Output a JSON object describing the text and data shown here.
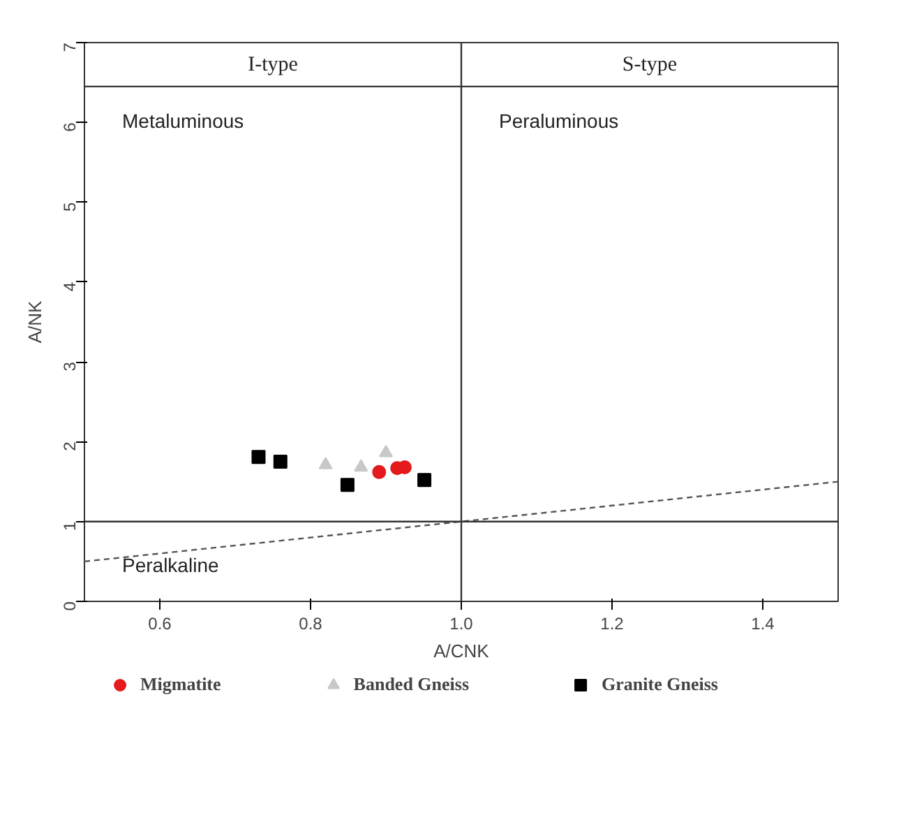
{
  "chart_data": {
    "type": "scatter",
    "xlabel": "A/CNK",
    "ylabel": "A/NK",
    "xlim": [
      0.5,
      1.5
    ],
    "ylim": [
      0,
      7
    ],
    "xticks": [
      0.6,
      0.8,
      {
        "value": 1.0,
        "label": "1.0"
      },
      1.2,
      1.4
    ],
    "yticks": [
      0,
      1,
      2,
      3,
      4,
      5,
      6,
      7
    ],
    "grid": false,
    "legend": "bottom",
    "series": [
      {
        "name": "Migmatite",
        "color": "#e41a1c",
        "marker": "circle",
        "x": [
          0.891,
          0.915,
          0.925
        ],
        "values": [
          1.62,
          1.67,
          1.68
        ]
      },
      {
        "name": "Banded Gneiss",
        "color": "#c8c8c8",
        "marker": "triangle",
        "x": [
          0.82,
          0.867,
          0.9
        ],
        "values": [
          1.71,
          1.68,
          1.86
        ]
      },
      {
        "name": "Granite Gneiss",
        "color": "#000000",
        "marker": "square",
        "x": [
          0.731,
          0.76,
          0.849,
          0.951
        ],
        "values": [
          1.81,
          1.75,
          1.46,
          1.52
        ]
      },
      {
        "type": "line",
        "color": "#555555",
        "line_style": "dashed",
        "marker": "none",
        "x": [
          0.5,
          1.5
        ],
        "values": [
          0.5,
          1.5
        ]
      }
    ],
    "ref_lines": [
      {
        "axis": "x",
        "value": 1.0,
        "color": "#333333"
      },
      {
        "axis": "y",
        "value": 1.0,
        "color": "#333333"
      },
      {
        "axis": "y",
        "value": 6.45,
        "color": "#333333"
      }
    ],
    "annotations": [
      "I-type",
      "S-type",
      "Metaluminous",
      "Peraluminous",
      "Peralkaline"
    ]
  }
}
